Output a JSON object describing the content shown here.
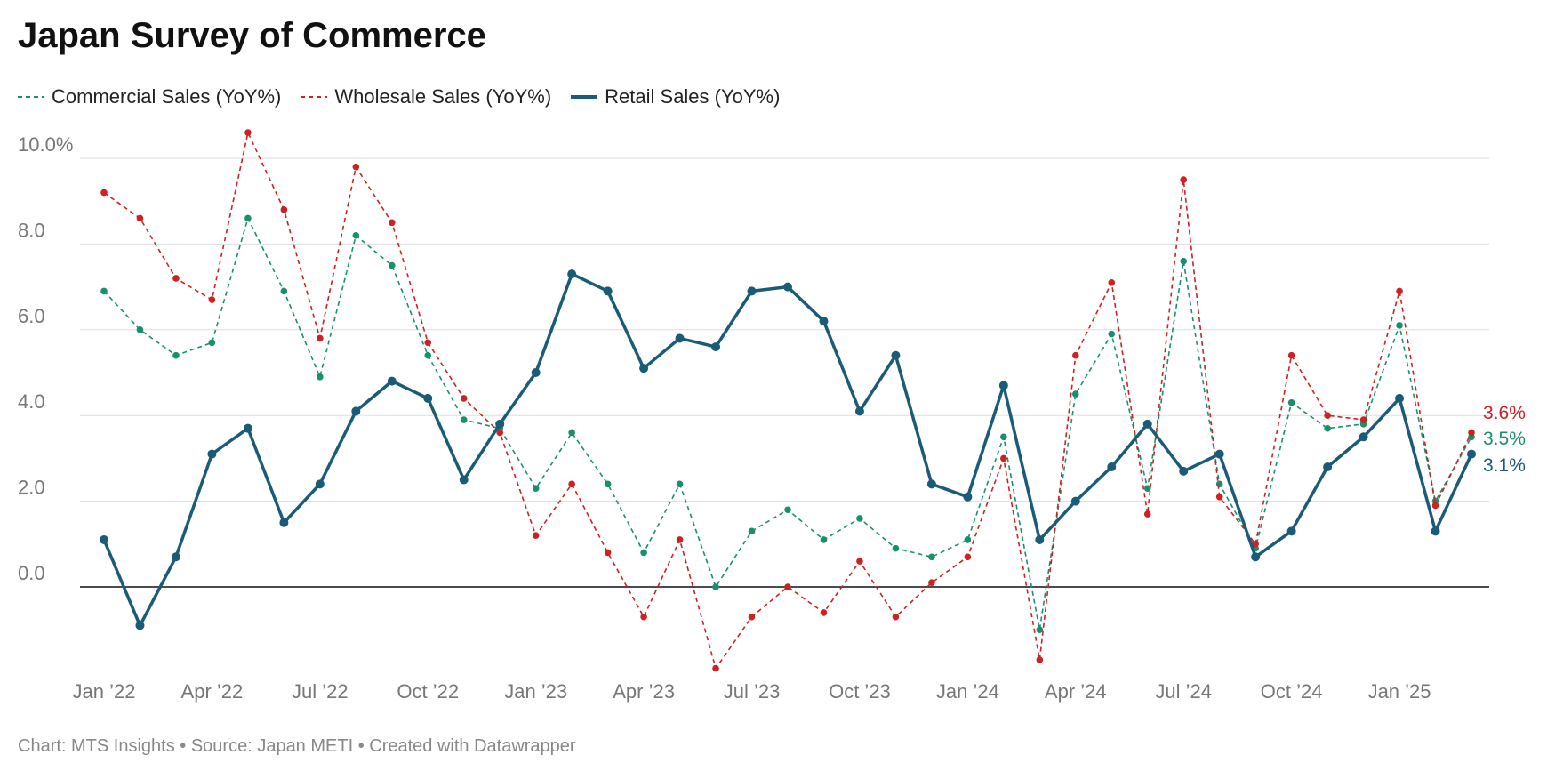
{
  "title": "Japan Survey of Commerce",
  "footer": "Chart: MTS Insights • Source: Japan METI • Created with Datawrapper",
  "chart_data": {
    "type": "line",
    "title": "Japan Survey of Commerce",
    "x": [
      "Jan '22",
      "Feb '22",
      "Mar '22",
      "Apr '22",
      "May '22",
      "Jun '22",
      "Jul '22",
      "Aug '22",
      "Sep '22",
      "Oct '22",
      "Nov '22",
      "Dec '22",
      "Jan '23",
      "Feb '23",
      "Mar '23",
      "Apr '23",
      "May '23",
      "Jun '23",
      "Jul '23",
      "Aug '23",
      "Sep '23",
      "Oct '23",
      "Nov '23",
      "Dec '23",
      "Jan '24",
      "Feb '24",
      "Mar '24",
      "Apr '24",
      "May '24",
      "Jun '24",
      "Jul '24",
      "Aug '24",
      "Sep '24",
      "Oct '24",
      "Nov '24",
      "Dec '24",
      "Jan '25",
      "Feb '25",
      "Mar '25"
    ],
    "x_tick_labels": [
      "Jan ’22",
      "Apr ’22",
      "Jul ’22",
      "Oct ’22",
      "Jan ’23",
      "Apr ’23",
      "Jul ’23",
      "Oct ’23",
      "Jan ’24",
      "Apr ’24",
      "Jul ’24",
      "Oct ’24",
      "Jan ’25"
    ],
    "x_tick_index": [
      0,
      3,
      6,
      9,
      12,
      15,
      18,
      21,
      24,
      27,
      30,
      33,
      36
    ],
    "y_ticks": [
      0,
      2,
      4,
      6,
      8,
      10
    ],
    "y_tick_labels": [
      "0.0",
      "2.0",
      "4.0",
      "6.0",
      "8.0",
      "10.0%"
    ],
    "ylim": [
      -2,
      10.7
    ],
    "grid": true,
    "legend_position": "top-left",
    "series": [
      {
        "name": "Commercial Sales (YoY%)",
        "style": "dashed",
        "color": "#1a8f6e",
        "end_label": "3.5%",
        "values": [
          6.9,
          6.0,
          5.4,
          5.7,
          8.6,
          6.9,
          4.9,
          8.2,
          7.5,
          5.4,
          3.9,
          3.7,
          2.3,
          3.6,
          2.4,
          0.8,
          2.4,
          0.0,
          1.3,
          1.8,
          1.1,
          1.6,
          0.9,
          0.7,
          1.1,
          3.5,
          -1.0,
          4.5,
          5.9,
          2.3,
          7.6,
          2.4,
          0.9,
          4.3,
          3.7,
          3.8,
          6.1,
          2.0,
          3.5
        ]
      },
      {
        "name": "Wholesale Sales (YoY%)",
        "style": "dashed",
        "color": "#cc2222",
        "end_label": "3.6%",
        "values": [
          9.2,
          8.6,
          7.2,
          6.7,
          10.6,
          8.8,
          5.8,
          9.8,
          8.5,
          5.7,
          4.4,
          3.6,
          1.2,
          2.4,
          0.8,
          -0.7,
          1.1,
          -1.9,
          -0.7,
          0.0,
          -0.6,
          0.6,
          -0.7,
          0.1,
          0.7,
          3.0,
          -1.7,
          5.4,
          7.1,
          1.7,
          9.5,
          2.1,
          1.0,
          5.4,
          4.0,
          3.9,
          6.9,
          1.9,
          3.6
        ]
      },
      {
        "name": "Retail Sales (YoY%)",
        "style": "solid",
        "color": "#1a5b78",
        "end_label": "3.1%",
        "values": [
          1.1,
          -0.9,
          0.7,
          3.1,
          3.7,
          1.5,
          2.4,
          4.1,
          4.8,
          4.4,
          2.5,
          3.8,
          5.0,
          7.3,
          6.9,
          5.1,
          5.8,
          5.6,
          6.9,
          7.0,
          6.2,
          4.1,
          5.4,
          2.4,
          2.1,
          4.7,
          1.1,
          2.0,
          2.8,
          3.8,
          2.7,
          3.1,
          0.7,
          1.3,
          2.8,
          3.5,
          4.4,
          1.3,
          3.1
        ]
      }
    ]
  }
}
